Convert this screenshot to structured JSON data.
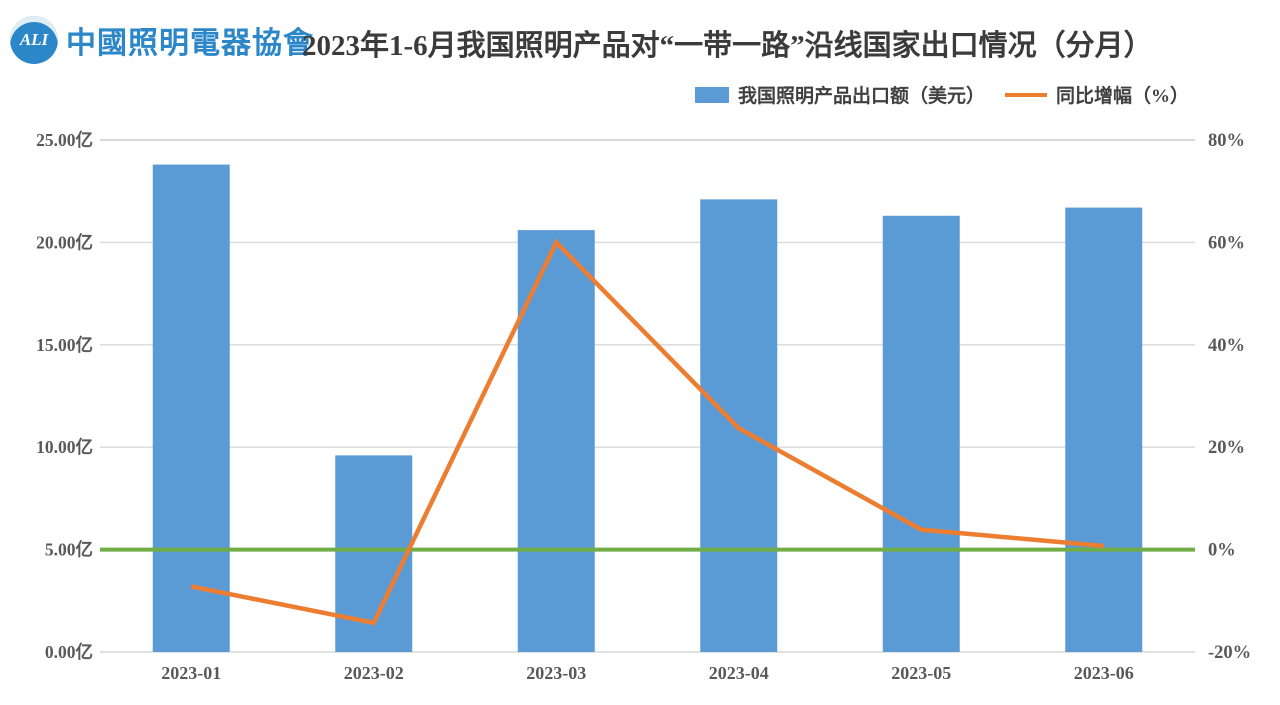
{
  "header": {
    "logo": {
      "abbr": "ALI",
      "org_name": "中國照明電器協會"
    },
    "title": "2023年1-6月我国照明产品对“一带一路”沿线国家出口情况（分月）"
  },
  "legend": [
    {
      "label": "我国照明产品出口额（美元）",
      "type": "bar",
      "color": "#5b9bd5"
    },
    {
      "label": "同比增幅（%）",
      "type": "line",
      "color": "#ed7d31"
    }
  ],
  "chart_data": {
    "type": "bar",
    "subtype": "combo-bar-line-dual-axis",
    "title": "2023年1-6月我国照明产品对“一带一路”沿线国家出口情况（分月）",
    "categories": [
      "2023-01",
      "2023-02",
      "2023-03",
      "2023-04",
      "2023-05",
      "2023-06"
    ],
    "series": [
      {
        "name": "我国照明产品出口额（美元）",
        "type": "bar",
        "axis": "left",
        "unit": "亿美元",
        "color": "#5b9bd5",
        "values": [
          23.8,
          9.6,
          20.6,
          22.1,
          21.3,
          21.7
        ]
      },
      {
        "name": "同比增幅（%）",
        "type": "line",
        "axis": "right",
        "unit": "%",
        "color": "#ed7d31",
        "values": [
          -7.2,
          -14.3,
          60.0,
          23.7,
          3.9,
          0.7
        ]
      }
    ],
    "left_axis": {
      "min": 0,
      "max": 25,
      "step": 5,
      "ticks": [
        "25.00亿",
        "20.00亿",
        "15.00亿",
        "10.00亿",
        "5.00亿",
        "0.00亿"
      ]
    },
    "right_axis": {
      "min": -20,
      "max": 80,
      "step": 20,
      "ticks": [
        "80%",
        "60%",
        "40%",
        "20%",
        "0%",
        "-20%"
      ]
    },
    "zero_line": {
      "axis": "right",
      "value": 0,
      "color": "#70ad47"
    },
    "grid": true,
    "gridline_color": "#d9d9d9",
    "axis_label_color": "#595959",
    "legend_position": "top-right"
  }
}
